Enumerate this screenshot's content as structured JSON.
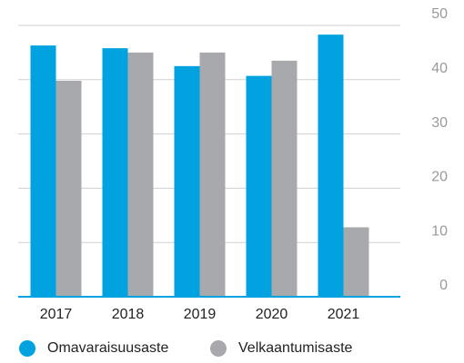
{
  "chart_data": {
    "type": "bar",
    "categories": [
      "2017",
      "2018",
      "2019",
      "2020",
      "2021"
    ],
    "series": [
      {
        "name": "Omavaraisuusaste",
        "color": "#00a3e0",
        "values": [
          46.3,
          45.8,
          42.5,
          40.7,
          48.3
        ]
      },
      {
        "name": "Velkaantumisaste",
        "color": "#a7a9ac",
        "values": [
          39.8,
          45,
          45,
          43.5,
          12.8
        ]
      }
    ],
    "ylim": [
      0,
      50
    ],
    "yticks": [
      0,
      10,
      20,
      30,
      40,
      50
    ],
    "grid": true,
    "legend": "bottom"
  }
}
